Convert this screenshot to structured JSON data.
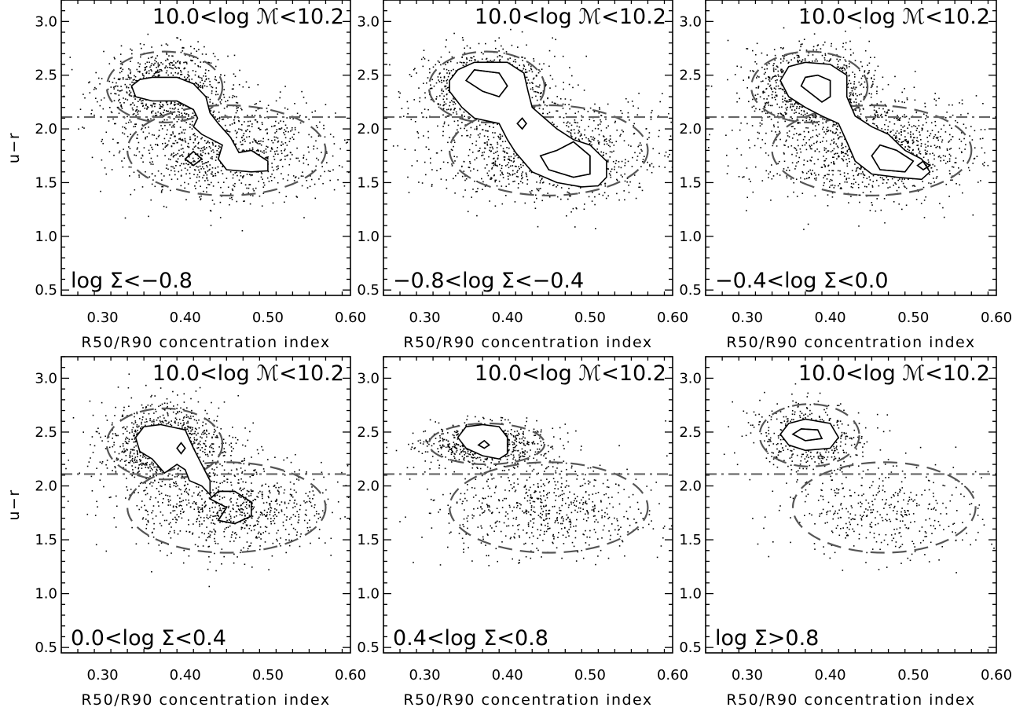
{
  "figure": {
    "x_axis_label": "R50/R90 concentration index",
    "y_axis_label": "u−r"
  },
  "chart_data": [
    {
      "type": "scatter",
      "panel": "top-left",
      "xlabel": "R50/R90 concentration index",
      "ylabel": "u−r",
      "xlim": [
        0.25,
        0.6
      ],
      "ylim": [
        0.45,
        3.2
      ],
      "xticks": [
        "0.30",
        "0.40",
        "0.50",
        "0.60"
      ],
      "yticks": [
        "0.5",
        "1.0",
        "1.5",
        "2.0",
        "2.5",
        "3.0"
      ],
      "annotation_top": "10.0<log ℳ<10.2",
      "annotation_bottom": "log Σ<−0.8",
      "divider_y": 2.11,
      "red_ellipse": {
        "cx": 0.375,
        "cy": 2.39,
        "rx": 0.07,
        "ry": 0.33
      },
      "blue_ellipse": {
        "cx": 0.45,
        "cy": 1.8,
        "rx": 0.12,
        "ry": 0.42
      },
      "n_points": 1800,
      "red_fraction": 0.45,
      "contours": [
        {
          "points": [
            [
              0.335,
              2.4
            ],
            [
              0.34,
              2.3
            ],
            [
              0.36,
              2.26
            ],
            [
              0.39,
              2.26
            ],
            [
              0.41,
              2.18
            ],
            [
              0.415,
              2.1
            ],
            [
              0.41,
              2.02
            ],
            [
              0.42,
              1.95
            ],
            [
              0.445,
              1.85
            ],
            [
              0.44,
              1.72
            ],
            [
              0.45,
              1.62
            ],
            [
              0.48,
              1.6
            ],
            [
              0.5,
              1.61
            ],
            [
              0.5,
              1.7
            ],
            [
              0.48,
              1.8
            ],
            [
              0.465,
              1.78
            ],
            [
              0.455,
              1.92
            ],
            [
              0.44,
              2.05
            ],
            [
              0.43,
              2.15
            ],
            [
              0.425,
              2.3
            ],
            [
              0.41,
              2.42
            ],
            [
              0.39,
              2.48
            ],
            [
              0.36,
              2.48
            ],
            [
              0.345,
              2.46
            ]
          ]
        },
        {
          "points": [
            [
              0.4,
              1.72
            ],
            [
              0.41,
              1.66
            ],
            [
              0.42,
              1.72
            ],
            [
              0.41,
              1.79
            ]
          ]
        }
      ]
    },
    {
      "type": "scatter",
      "panel": "top-middle",
      "xlabel": "R50/R90 concentration index",
      "ylabel": "",
      "xlim": [
        0.25,
        0.6
      ],
      "ylim": [
        0.45,
        3.2
      ],
      "xticks": [
        "0.30",
        "0.40",
        "0.50",
        "0.60"
      ],
      "yticks": [
        "0.5",
        "1.0",
        "1.5",
        "2.0",
        "2.5",
        "3.0"
      ],
      "annotation_top": "10.0<log ℳ<10.2",
      "annotation_bottom": "−0.8<log Σ<−0.4",
      "divider_y": 2.11,
      "red_ellipse": {
        "cx": 0.375,
        "cy": 2.39,
        "rx": 0.07,
        "ry": 0.33
      },
      "blue_ellipse": {
        "cx": 0.45,
        "cy": 1.8,
        "rx": 0.12,
        "ry": 0.42
      },
      "n_points": 2000,
      "red_fraction": 0.45,
      "contours": [
        {
          "points": [
            [
              0.33,
              2.45
            ],
            [
              0.33,
              2.35
            ],
            [
              0.345,
              2.2
            ],
            [
              0.36,
              2.1
            ],
            [
              0.39,
              2.05
            ],
            [
              0.4,
              1.9
            ],
            [
              0.41,
              1.78
            ],
            [
              0.43,
              1.6
            ],
            [
              0.46,
              1.5
            ],
            [
              0.49,
              1.46
            ],
            [
              0.51,
              1.47
            ],
            [
              0.52,
              1.55
            ],
            [
              0.52,
              1.7
            ],
            [
              0.5,
              1.85
            ],
            [
              0.48,
              1.9
            ],
            [
              0.46,
              2.0
            ],
            [
              0.445,
              2.1
            ],
            [
              0.43,
              2.2
            ],
            [
              0.425,
              2.35
            ],
            [
              0.42,
              2.52
            ],
            [
              0.4,
              2.62
            ],
            [
              0.36,
              2.62
            ],
            [
              0.34,
              2.55
            ]
          ]
        },
        {
          "points": [
            [
              0.35,
              2.45
            ],
            [
              0.37,
              2.35
            ],
            [
              0.39,
              2.3
            ],
            [
              0.4,
              2.4
            ],
            [
              0.39,
              2.52
            ],
            [
              0.36,
              2.55
            ]
          ]
        },
        {
          "points": [
            [
              0.44,
              1.75
            ],
            [
              0.45,
              1.62
            ],
            [
              0.48,
              1.55
            ],
            [
              0.5,
              1.58
            ],
            [
              0.5,
              1.75
            ],
            [
              0.48,
              1.88
            ],
            [
              0.46,
              1.8
            ]
          ]
        },
        {
          "points": [
            [
              0.412,
              2.05
            ],
            [
              0.418,
              2.0
            ],
            [
              0.423,
              2.05
            ],
            [
              0.418,
              2.1
            ]
          ]
        }
      ]
    },
    {
      "type": "scatter",
      "panel": "top-right",
      "xlabel": "R50/R90 concentration index",
      "ylabel": "",
      "xlim": [
        0.25,
        0.6
      ],
      "ylim": [
        0.45,
        3.2
      ],
      "xticks": [
        "0.30",
        "0.40",
        "0.50",
        "0.60"
      ],
      "yticks": [
        "0.5",
        "1.0",
        "1.5",
        "2.0",
        "2.5",
        "3.0"
      ],
      "annotation_top": "10.0<log ℳ<10.2",
      "annotation_bottom": "−0.4<log Σ<0.0",
      "divider_y": 2.11,
      "red_ellipse": {
        "cx": 0.375,
        "cy": 2.39,
        "rx": 0.07,
        "ry": 0.33
      },
      "blue_ellipse": {
        "cx": 0.45,
        "cy": 1.8,
        "rx": 0.12,
        "ry": 0.42
      },
      "n_points": 2100,
      "red_fraction": 0.45,
      "contours": [
        {
          "points": [
            [
              0.34,
              2.45
            ],
            [
              0.35,
              2.3
            ],
            [
              0.37,
              2.2
            ],
            [
              0.39,
              2.12
            ],
            [
              0.41,
              2.05
            ],
            [
              0.42,
              1.88
            ],
            [
              0.43,
              1.7
            ],
            [
              0.45,
              1.58
            ],
            [
              0.48,
              1.55
            ],
            [
              0.51,
              1.53
            ],
            [
              0.52,
              1.6
            ],
            [
              0.51,
              1.72
            ],
            [
              0.49,
              1.8
            ],
            [
              0.47,
              1.95
            ],
            [
              0.45,
              2.02
            ],
            [
              0.43,
              2.12
            ],
            [
              0.42,
              2.3
            ],
            [
              0.42,
              2.5
            ],
            [
              0.4,
              2.6
            ],
            [
              0.37,
              2.62
            ],
            [
              0.35,
              2.58
            ]
          ]
        },
        {
          "points": [
            [
              0.365,
              2.4
            ],
            [
              0.39,
              2.25
            ],
            [
              0.4,
              2.3
            ],
            [
              0.4,
              2.45
            ],
            [
              0.385,
              2.5
            ],
            [
              0.37,
              2.48
            ]
          ]
        },
        {
          "points": [
            [
              0.45,
              1.75
            ],
            [
              0.46,
              1.62
            ],
            [
              0.49,
              1.6
            ],
            [
              0.5,
              1.7
            ],
            [
              0.48,
              1.8
            ],
            [
              0.46,
              1.85
            ]
          ]
        },
        {
          "points": [
            [
              0.505,
              1.66
            ],
            [
              0.512,
              1.62
            ],
            [
              0.52,
              1.66
            ],
            [
              0.512,
              1.7
            ]
          ]
        }
      ]
    },
    {
      "type": "scatter",
      "panel": "bottom-left",
      "xlabel": "R50/R90 concentration index",
      "ylabel": "u−r",
      "xlim": [
        0.25,
        0.6
      ],
      "ylim": [
        0.45,
        3.2
      ],
      "xticks": [
        "0.30",
        "0.40",
        "0.50",
        "0.60"
      ],
      "yticks": [
        "0.5",
        "1.0",
        "1.5",
        "2.0",
        "2.5",
        "3.0"
      ],
      "annotation_top": "10.0<log ℳ<10.2",
      "annotation_bottom": "0.0<log Σ<0.4",
      "divider_y": 2.11,
      "red_ellipse": {
        "cx": 0.375,
        "cy": 2.39,
        "rx": 0.07,
        "ry": 0.33
      },
      "blue_ellipse": {
        "cx": 0.45,
        "cy": 1.8,
        "rx": 0.12,
        "ry": 0.42
      },
      "n_points": 1800,
      "red_fraction": 0.55,
      "contours": [
        {
          "points": [
            [
              0.34,
              2.45
            ],
            [
              0.345,
              2.32
            ],
            [
              0.36,
              2.25
            ],
            [
              0.375,
              2.12
            ],
            [
              0.39,
              2.2
            ],
            [
              0.4,
              2.15
            ],
            [
              0.405,
              2.05
            ],
            [
              0.42,
              2.0
            ],
            [
              0.43,
              1.92
            ],
            [
              0.43,
              2.05
            ],
            [
              0.42,
              2.2
            ],
            [
              0.41,
              2.35
            ],
            [
              0.4,
              2.52
            ],
            [
              0.37,
              2.57
            ],
            [
              0.35,
              2.55
            ]
          ]
        },
        {
          "points": [
            [
              0.43,
              1.88
            ],
            [
              0.45,
              1.8
            ],
            [
              0.44,
              1.68
            ],
            [
              0.46,
              1.65
            ],
            [
              0.48,
              1.72
            ],
            [
              0.48,
              1.85
            ],
            [
              0.46,
              1.95
            ],
            [
              0.44,
              1.95
            ]
          ]
        },
        {
          "points": [
            [
              0.39,
              2.35
            ],
            [
              0.395,
              2.3
            ],
            [
              0.4,
              2.35
            ],
            [
              0.395,
              2.4
            ]
          ]
        }
      ]
    },
    {
      "type": "scatter",
      "panel": "bottom-middle",
      "xlabel": "R50/R90 concentration index",
      "ylabel": "",
      "xlim": [
        0.25,
        0.6
      ],
      "ylim": [
        0.45,
        3.2
      ],
      "xticks": [
        "0.30",
        "0.40",
        "0.50",
        "0.60"
      ],
      "yticks": [
        "0.5",
        "1.0",
        "1.5",
        "2.0",
        "2.5",
        "3.0"
      ],
      "annotation_top": "10.0<log ℳ<10.2",
      "annotation_bottom": "0.4<log Σ<0.8",
      "divider_y": 2.11,
      "red_ellipse": {
        "cx": 0.375,
        "cy": 2.39,
        "rx": 0.07,
        "ry": 0.19
      },
      "blue_ellipse": {
        "cx": 0.45,
        "cy": 1.8,
        "rx": 0.12,
        "ry": 0.42
      },
      "n_points": 1300,
      "red_fraction": 0.5,
      "contours": [
        {
          "points": [
            [
              0.34,
              2.45
            ],
            [
              0.35,
              2.35
            ],
            [
              0.37,
              2.28
            ],
            [
              0.39,
              2.25
            ],
            [
              0.4,
              2.3
            ],
            [
              0.4,
              2.45
            ],
            [
              0.39,
              2.55
            ],
            [
              0.37,
              2.57
            ],
            [
              0.35,
              2.55
            ]
          ]
        },
        {
          "points": [
            [
              0.365,
              2.38
            ],
            [
              0.372,
              2.35
            ],
            [
              0.378,
              2.38
            ],
            [
              0.372,
              2.42
            ]
          ]
        }
      ]
    },
    {
      "type": "scatter",
      "panel": "bottom-right",
      "xlabel": "R50/R90 concentration index",
      "ylabel": "",
      "xlim": [
        0.25,
        0.6
      ],
      "ylim": [
        0.45,
        3.2
      ],
      "xticks": [
        "0.30",
        "0.40",
        "0.50",
        "0.60"
      ],
      "yticks": [
        "0.5",
        "1.0",
        "1.5",
        "2.0",
        "2.5",
        "3.0"
      ],
      "annotation_top": "10.0<log ℳ<10.2",
      "annotation_bottom": "log Σ>0.8",
      "divider_y": 2.11,
      "red_ellipse": {
        "cx": 0.375,
        "cy": 2.47,
        "rx": 0.06,
        "ry": 0.29
      },
      "blue_ellipse": {
        "cx": 0.465,
        "cy": 1.8,
        "rx": 0.11,
        "ry": 0.42
      },
      "n_points": 900,
      "red_fraction": 0.55,
      "contours": [
        {
          "points": [
            [
              0.34,
              2.48
            ],
            [
              0.35,
              2.38
            ],
            [
              0.37,
              2.33
            ],
            [
              0.4,
              2.35
            ],
            [
              0.41,
              2.45
            ],
            [
              0.4,
              2.58
            ],
            [
              0.37,
              2.62
            ],
            [
              0.35,
              2.58
            ]
          ]
        },
        {
          "points": [
            [
              0.355,
              2.48
            ],
            [
              0.37,
              2.42
            ],
            [
              0.39,
              2.44
            ],
            [
              0.385,
              2.52
            ],
            [
              0.365,
              2.53
            ]
          ]
        }
      ]
    }
  ]
}
